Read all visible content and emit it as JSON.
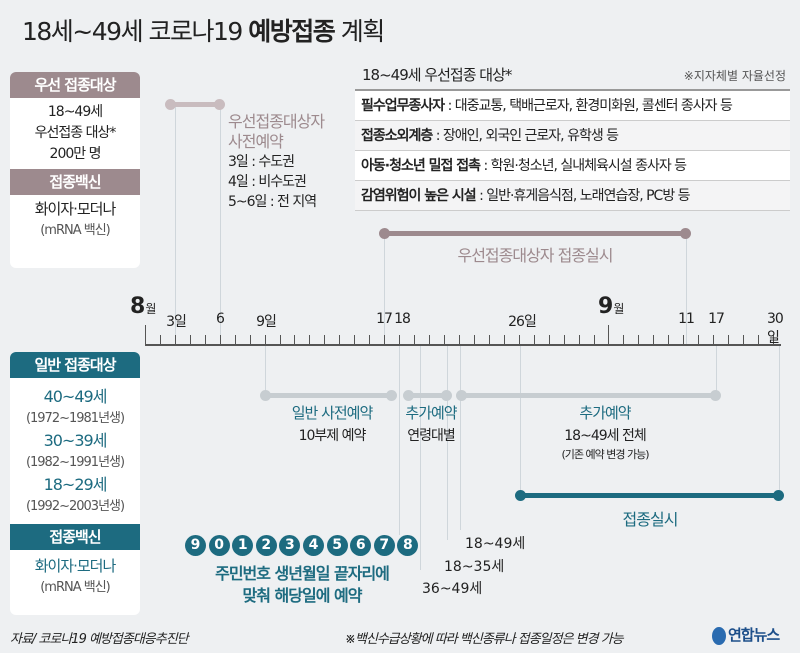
{
  "title": {
    "pre": "18세~49세 코로나19 ",
    "bold": "예방접종",
    "post": " 계획"
  },
  "priority_panel": {
    "header": "우선 접종대상",
    "lines": [
      "18~49세",
      "우선접종 대상*",
      "200만 명"
    ],
    "vaccine_header": "접종백신",
    "vaccine": "화이자·모더나",
    "vaccine_sub": "(mRNA 백신)"
  },
  "pre_reservation": {
    "title1": "우선접종대상자",
    "title2": "사전예약",
    "lines": [
      "3일 : 수도권",
      "4일 : 비수도권",
      "5~6일 : 전 지역"
    ]
  },
  "priority_table": {
    "title": "18~49세 우선접종 대상*",
    "note": "※지자체별 자율선정",
    "rows": [
      {
        "label": "필수업무종사자",
        "text": " : 대중교통, 택배근로자, 환경미화원, 콜센터 종사자 등"
      },
      {
        "label": "접종소외계층",
        "text": " : 장애인, 외국인 근로자, 유학생 등"
      },
      {
        "label": "아동·청소년 밀접 접촉",
        "text": " : 학원·청소년, 실내체육시설 종사자 등"
      },
      {
        "label": "감염위험이 높은 시설",
        "text": " : 일반·휴게음식점, 노래연습장, PC방 등"
      }
    ]
  },
  "priority_vaccination": "우선접종대상자 접종실시",
  "axis": {
    "months": [
      {
        "num": "8",
        "unit": "월"
      },
      {
        "num": "9",
        "unit": "월"
      }
    ],
    "labels": [
      "3일",
      "6",
      "9일",
      "17",
      "18",
      "26일",
      "11",
      "17",
      "30일"
    ]
  },
  "general_panel": {
    "header": "일반 접종대상",
    "groups": [
      {
        "age": "40~49세",
        "born": "(1972~1981년생)"
      },
      {
        "age": "30~39세",
        "born": "(1982~1991년생)"
      },
      {
        "age": "18~29세",
        "born": "(1992~2003년생)"
      }
    ],
    "vaccine_header": "접종백신",
    "vaccine": "화이자·모더나",
    "vaccine_sub": "(mRNA 백신)"
  },
  "general": {
    "res_title": "일반 사전예약",
    "res_sub": "10부제 예약",
    "add1_title": "추가예약",
    "add1_sub": "연령대별",
    "add2_title": "추가예약",
    "add2_sub": "18~49세 전체",
    "add2_note": "(기존 예약 변경 가능)",
    "vacc": "접종실시",
    "digits": [
      "9",
      "0",
      "1",
      "2",
      "3",
      "4",
      "5",
      "6",
      "7",
      "8"
    ],
    "digit_note1": "주민번호 생년월일 끝자리에",
    "digit_note2": "맞춰 해당일에 예약",
    "ages": [
      "18~49세",
      "18~35세",
      "36~49세"
    ]
  },
  "footer": {
    "source": "자료/  코로나19 예방접종대응추진단",
    "note": "※백신수급상황에 따라 백신종류나 접종일정은 변경 가능",
    "logo": "연합뉴스"
  },
  "colors": {
    "mauve": "#9d8a8e",
    "teal": "#1d6b80",
    "grey_bar": "#c7cdd1"
  }
}
